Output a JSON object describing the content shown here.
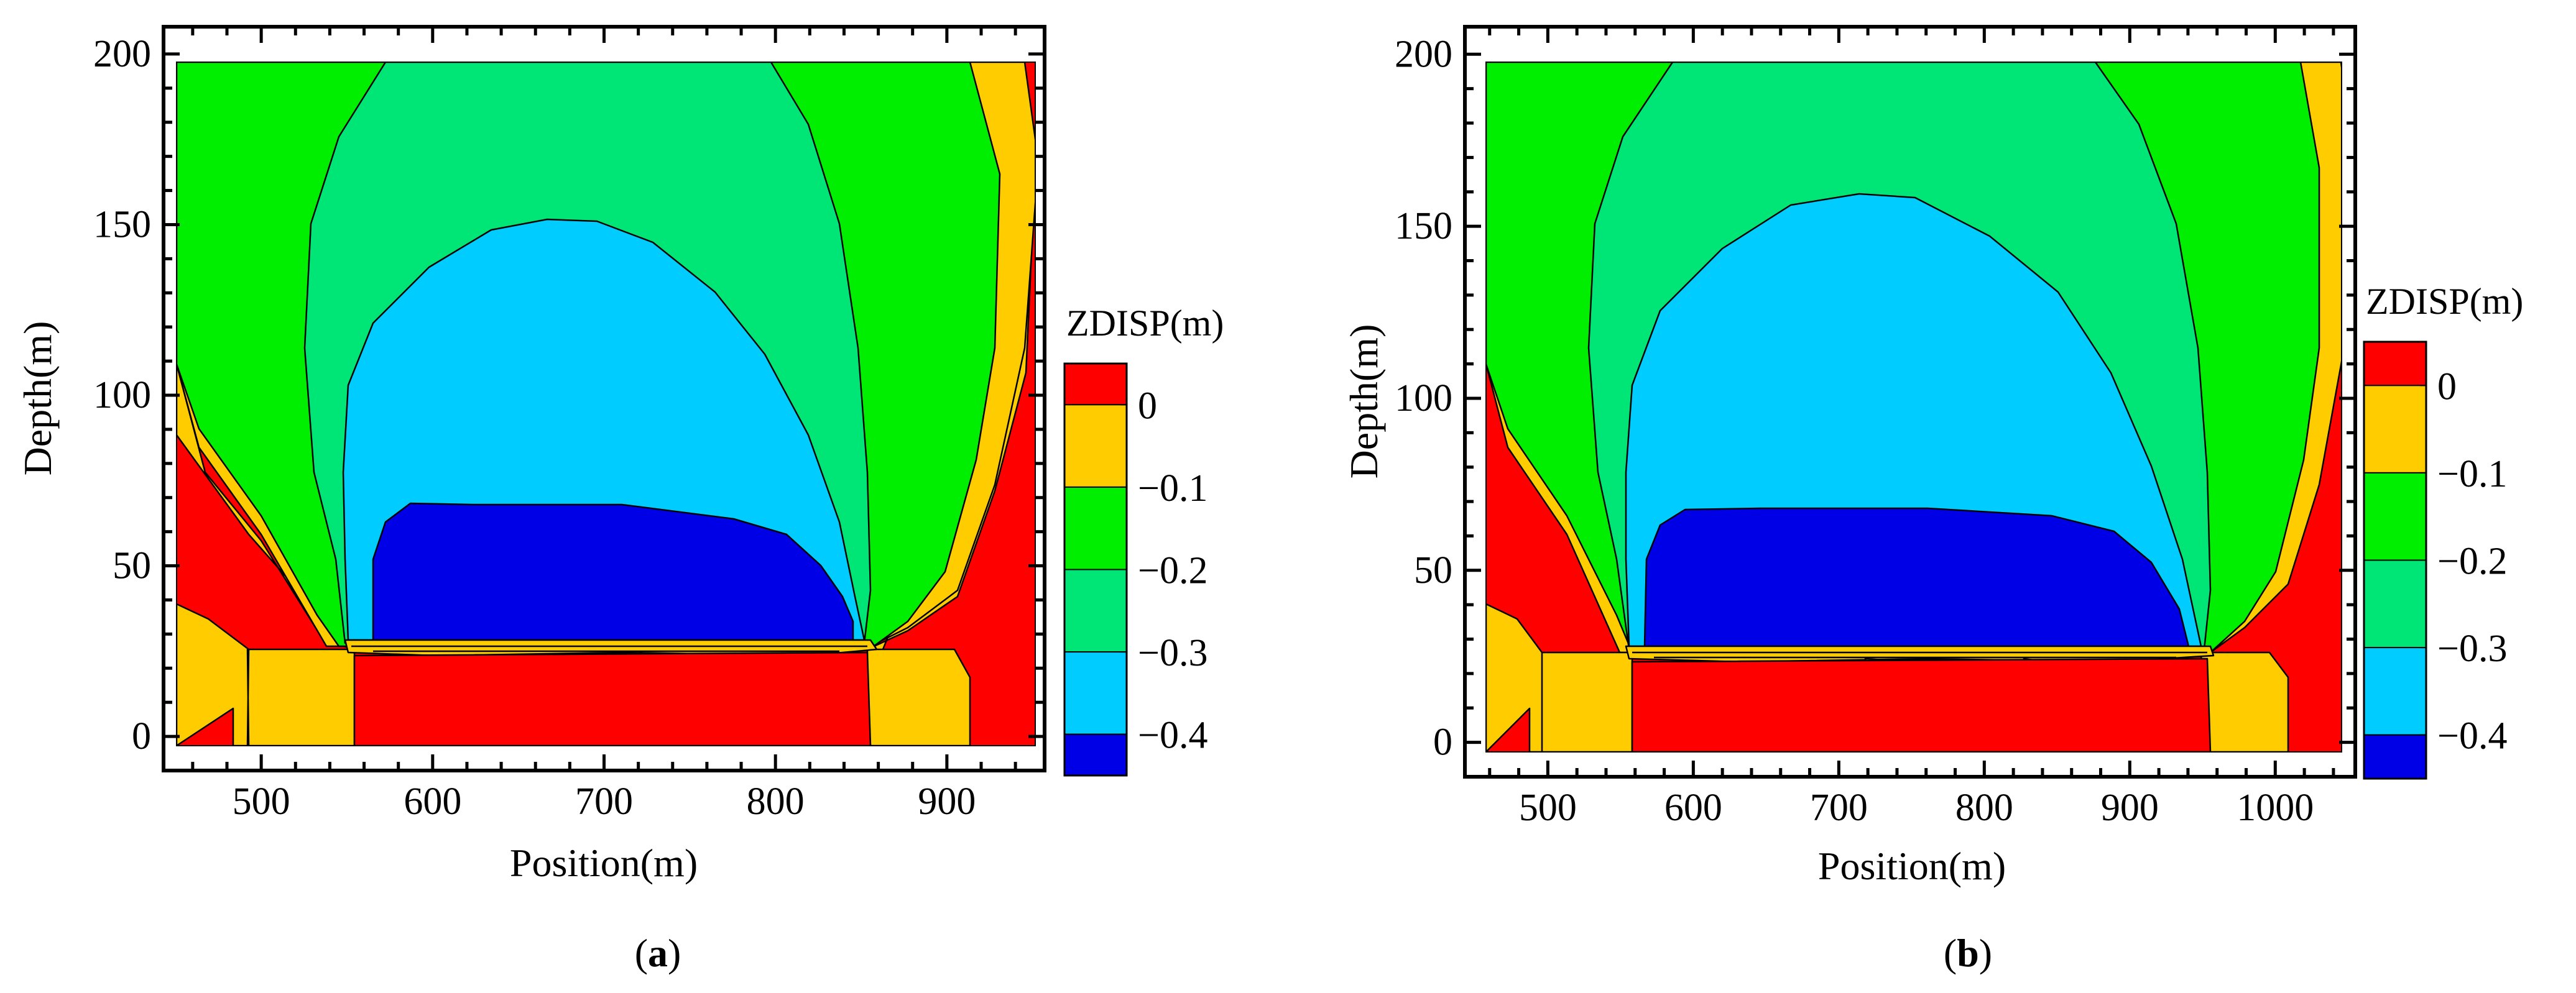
{
  "chart_data": [
    {
      "type": "contour",
      "panel_label": "a",
      "xlabel": "Position(m)",
      "ylabel": "Depth(m)",
      "xlim": [
        443,
        957
      ],
      "ylim": [
        -10,
        208
      ],
      "x_ticks": [
        500,
        600,
        700,
        800,
        900
      ],
      "y_ticks": [
        0,
        50,
        100,
        150,
        200
      ],
      "colorbar": {
        "title": "ZDISP(m)",
        "tick_labels": [
          "0",
          "-0.1",
          "-0.2",
          "-0.3",
          "-0.4"
        ],
        "colors": [
          "#ff0000",
          "#ffcc00",
          "#00ee00",
          "#00e676",
          "#00ccff",
          "#0000e6"
        ]
      },
      "regions": [
        {
          "level": "> 0",
          "color": "#ff0000",
          "description": "base blocks below 30 m and lateral edges"
        },
        {
          "level": "0 to -0.1",
          "color": "#ffcc00",
          "x_range": [
            450,
            950
          ]
        },
        {
          "level": "-0.1 to -0.2",
          "color": "#00ee00",
          "x_range": [
            450,
            948
          ]
        },
        {
          "level": "-0.2 to -0.3",
          "color": "#00e676",
          "x_range": [
            535,
            858
          ]
        },
        {
          "level": "-0.3 to -0.4",
          "color": "#00ccff",
          "x_range": [
            555,
            850
          ],
          "peak_depth": 153
        },
        {
          "level": "< -0.4",
          "color": "#0000e6",
          "x_range": [
            560,
            845
          ],
          "top_depth": 69
        }
      ]
    },
    {
      "type": "contour",
      "panel_label": "b",
      "xlabel": "Position(m)",
      "ylabel": "Depth(m)",
      "xlim": [
        443,
        1055
      ],
      "ylim": [
        -10,
        208
      ],
      "x_ticks": [
        500,
        600,
        700,
        800,
        900,
        1000
      ],
      "y_ticks": [
        0,
        50,
        100,
        150,
        200
      ],
      "colorbar": {
        "title": "ZDISP(m)",
        "tick_labels": [
          "0",
          "-0.1",
          "-0.2",
          "-0.3",
          "-0.4"
        ],
        "colors": [
          "#ff0000",
          "#ffcc00",
          "#00ee00",
          "#00e676",
          "#00ccff",
          "#0000e6"
        ]
      },
      "regions": [
        {
          "level": "> 0",
          "color": "#ff0000",
          "description": "base blocks below 30 m and lateral edges"
        },
        {
          "level": "0 to -0.1",
          "color": "#ffcc00",
          "x_range": [
            450,
            1050
          ]
        },
        {
          "level": "-0.1 to -0.2",
          "color": "#00ee00",
          "x_range": [
            450,
            1040
          ]
        },
        {
          "level": "-0.2 to -0.3",
          "color": "#00e676",
          "x_range": [
            535,
            960
          ]
        },
        {
          "level": "-0.3 to -0.4",
          "color": "#00ccff",
          "x_range": [
            555,
            950
          ],
          "peak_depth": 161
        },
        {
          "level": "< -0.4",
          "color": "#0000e6",
          "x_range": [
            560,
            945
          ],
          "top_depth": 69
        }
      ]
    }
  ],
  "captions": {
    "a": {
      "open": "(",
      "letter": "a",
      "close": ")"
    },
    "b": {
      "open": "(",
      "letter": "b",
      "close": ")"
    }
  }
}
